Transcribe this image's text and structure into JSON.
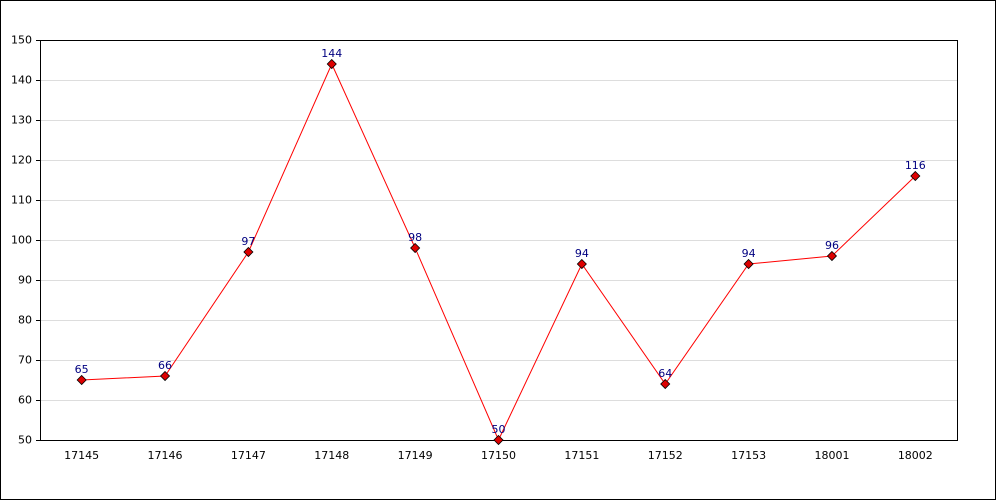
{
  "chart_data": {
    "type": "line",
    "categories": [
      "17145",
      "17146",
      "17147",
      "17148",
      "17149",
      "17150",
      "17151",
      "17152",
      "17153",
      "18001",
      "18002"
    ],
    "values": [
      65,
      66,
      97,
      144,
      98,
      50,
      94,
      64,
      94,
      96,
      116
    ],
    "color": "#ff0000",
    "marker_color": "#dd0000",
    "label_color": "#000080",
    "ylim": [
      50,
      150
    ],
    "yticks": [
      50,
      60,
      70,
      80,
      90,
      100,
      110,
      120,
      130,
      140,
      150
    ],
    "grid": true
  }
}
